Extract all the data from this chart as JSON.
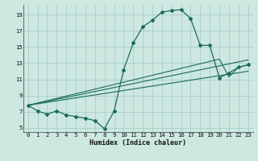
{
  "title": "",
  "xlabel": "Humidex (Indice chaleur)",
  "background_color": "#cce8e0",
  "grid_color": "#aacccc",
  "line_color": "#1a6b5a",
  "xlim": [
    -0.5,
    23.5
  ],
  "ylim": [
    4.5,
    20.2
  ],
  "xticks": [
    0,
    1,
    2,
    3,
    4,
    5,
    6,
    7,
    8,
    9,
    10,
    11,
    12,
    13,
    14,
    15,
    16,
    17,
    18,
    19,
    20,
    21,
    22,
    23
  ],
  "yticks": [
    5,
    7,
    9,
    11,
    13,
    15,
    17,
    19
  ],
  "line1_x": [
    0,
    1,
    2,
    3,
    4,
    5,
    6,
    7,
    8,
    9,
    10,
    11,
    12,
    13,
    14,
    15,
    16,
    17,
    18,
    19,
    20,
    21,
    22,
    23
  ],
  "line1_y": [
    7.8,
    7.1,
    6.7,
    7.1,
    6.6,
    6.4,
    6.2,
    5.9,
    4.9,
    7.1,
    12.2,
    15.5,
    17.5,
    18.3,
    19.3,
    19.5,
    19.6,
    18.5,
    15.2,
    15.2,
    11.2,
    11.8,
    12.5,
    12.8
  ],
  "line2_x": [
    0,
    20,
    21,
    22,
    23
  ],
  "line2_y": [
    7.8,
    13.5,
    11.3,
    12.5,
    12.8
  ],
  "line3_x": [
    0,
    23
  ],
  "line3_y": [
    7.8,
    13.4
  ],
  "line4_x": [
    0,
    23
  ],
  "line4_y": [
    7.8,
    12.0
  ]
}
